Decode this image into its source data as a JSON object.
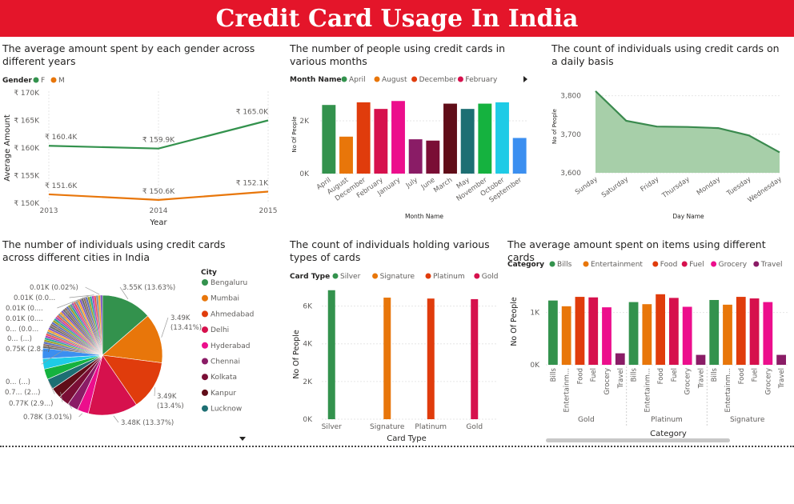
{
  "dashboard": {
    "title": "Credit Card Usage In India"
  },
  "colors": {
    "banner": "#e4152a",
    "green": "#33924d",
    "orange": "#e8760a",
    "red_orange": "#e03c0c",
    "crimson": "#d6114d",
    "pink": "#ec0e8c",
    "purple": "#8a1c66",
    "maroon": "#7a0e35",
    "dark_maroon": "#600d18",
    "teal": "#1d6f73",
    "bright_green": "#15b23f",
    "cyan": "#1ecbe6",
    "blue": "#3b8ff0",
    "area_fill": "#a7cfa9",
    "area_line": "#3a8a4e"
  },
  "chart_data": [
    {
      "id": "gender_line",
      "type": "line",
      "title": "The average amount spent by each gender across different years",
      "legend_title": "Gender",
      "xlabel": "Year",
      "ylabel": "Average Amount",
      "x": [
        "2013",
        "2014",
        "2015"
      ],
      "ylim": [
        150000,
        170000
      ],
      "yticks": [
        "₹ 150K",
        "₹ 155K",
        "₹ 160K",
        "₹ 165K",
        "₹ 170K"
      ],
      "series": [
        {
          "name": "F",
          "color": "#33924d",
          "values": [
            160400,
            159900,
            165000
          ],
          "labels": [
            "₹ 160.4K",
            "₹ 159.9K",
            "₹ 165.0K"
          ]
        },
        {
          "name": "M",
          "color": "#e8760a",
          "values": [
            151600,
            150600,
            152100
          ],
          "labels": [
            "₹ 151.6K",
            "₹ 150.6K",
            "₹ 152.1K"
          ]
        }
      ]
    },
    {
      "id": "month_bar",
      "type": "bar",
      "title": "The number of people using credit cards in various months",
      "legend_title": "Month Name",
      "legend": [
        "April",
        "August",
        "December",
        "February"
      ],
      "xlabel": "Month Name",
      "ylabel": "No Of People",
      "ylim": [
        0,
        3000
      ],
      "yticks": [
        "0K",
        "2K"
      ],
      "categories": [
        "April",
        "August",
        "December",
        "February",
        "January",
        "July",
        "June",
        "March",
        "May",
        "November",
        "October",
        "September"
      ],
      "values": [
        2600,
        1400,
        2700,
        2450,
        2750,
        1300,
        1250,
        2650,
        2450,
        2650,
        2700,
        1350
      ],
      "bar_colors": [
        "#33924d",
        "#e8760a",
        "#e03c0c",
        "#d6114d",
        "#ec0e8c",
        "#8a1c66",
        "#7a0e35",
        "#600d18",
        "#1d6f73",
        "#15b23f",
        "#1ecbe6",
        "#3b8ff0"
      ]
    },
    {
      "id": "day_area",
      "type": "area",
      "title": "The count of individuals using credit cards on a daily basis",
      "xlabel": "Day Name",
      "ylabel": "No of People",
      "ylim": [
        3600,
        3820
      ],
      "yticks": [
        "3,600",
        "3,700",
        "3,800"
      ],
      "categories": [
        "Sunday",
        "Saturday",
        "Friday",
        "Thursday",
        "Monday",
        "Tuesday",
        "Wednesday"
      ],
      "values": [
        3812,
        3735,
        3720,
        3719,
        3716,
        3697,
        3653
      ]
    },
    {
      "id": "city_pie",
      "type": "pie",
      "title": "The number of individuals using credit cards across different cities in India",
      "legend_title": "City",
      "legend": [
        "Bengaluru",
        "Mumbai",
        "Ahmedabad",
        "Delhi",
        "Hyderabad",
        "Chennai",
        "Kolkata",
        "Kanpur",
        "Lucknow"
      ],
      "slices": [
        {
          "name": "Bengaluru",
          "value": 13.63,
          "color": "#33924d",
          "label": "3.55K (13.63%)"
        },
        {
          "name": "Mumbai",
          "value": 13.41,
          "color": "#e8760a",
          "label": "3.49K (13.41%)"
        },
        {
          "name": "Ahmedabad",
          "value": 13.4,
          "color": "#e03c0c",
          "label": "3.49K (13.4%)"
        },
        {
          "name": "Delhi",
          "value": 13.37,
          "color": "#d6114d",
          "label": "3.48K (13.37%)"
        },
        {
          "name": "Hyderabad",
          "value": 3.01,
          "color": "#ec0e8c",
          "label": "0.78K (3.01%)"
        },
        {
          "name": "Chennai",
          "value": 2.96,
          "color": "#8a1c66",
          "label": "0.77K (2.9...)"
        },
        {
          "name": "Kolkata",
          "value": 2.9,
          "color": "#7a0e35",
          "label": "0.7... (2...)"
        },
        {
          "name": "Kanpur",
          "value": 2.88,
          "color": "#600d18",
          "label": "0... (...)"
        },
        {
          "name": "Lucknow",
          "value": 2.85,
          "color": "#1d6f73",
          "label": ""
        },
        {
          "name": "",
          "value": 2.84,
          "color": "#15b23f",
          "label": ""
        },
        {
          "name": "",
          "value": 2.84,
          "color": "#1ecbe6",
          "label": "0.75K (2.8...)"
        },
        {
          "name": "",
          "value": 2.83,
          "color": "#3b8ff0",
          "label": ""
        }
      ],
      "other_labels": [
        "0.01K (0.02%)",
        "0.01K (0.0...",
        "0.01K (0....",
        "0.01K (0....",
        "0... (0.0...",
        "0... (...)"
      ],
      "other_total": 23.08
    },
    {
      "id": "cardtype_bar",
      "type": "bar",
      "title": "The count of individuals holding various types of cards",
      "legend_title": "Card Type",
      "xlabel": "Card Type",
      "ylabel": "No Of People",
      "ylim": [
        0,
        7000
      ],
      "yticks": [
        "0K",
        "2K",
        "4K",
        "6K"
      ],
      "categories": [
        "Silver",
        "Signature",
        "Platinum",
        "Gold"
      ],
      "values": [
        6840,
        6447,
        6398,
        6367
      ],
      "bar_colors": [
        "#33924d",
        "#e8760a",
        "#e03c0c",
        "#d6114d"
      ]
    },
    {
      "id": "category_bar",
      "type": "bar",
      "title": "The average amount spent on items using different cards",
      "legend_title": "Category",
      "legend": [
        "Bills",
        "Entertainment",
        "Food",
        "Fuel",
        "Grocery",
        "Travel"
      ],
      "xlabel": "Category",
      "ylabel": "No Of People",
      "ylim": [
        0,
        1500
      ],
      "yticks": [
        "0K",
        "1K"
      ],
      "groups": [
        "Gold",
        "Platinum",
        "Signature"
      ],
      "categories": [
        "Bills",
        "Entertainm...",
        "Food",
        "Fuel",
        "Grocery",
        "Travel"
      ],
      "series": [
        {
          "group": "Gold",
          "values": [
            1230,
            1120,
            1300,
            1290,
            1100,
            220
          ]
        },
        {
          "group": "Platinum",
          "values": [
            1200,
            1160,
            1350,
            1280,
            1110,
            190
          ]
        },
        {
          "group": "Signature",
          "values": [
            1240,
            1150,
            1300,
            1270,
            1200,
            190
          ]
        }
      ],
      "bar_colors": [
        "#33924d",
        "#e8760a",
        "#e03c0c",
        "#d6114d",
        "#ec0e8c",
        "#8a1c66"
      ]
    }
  ]
}
